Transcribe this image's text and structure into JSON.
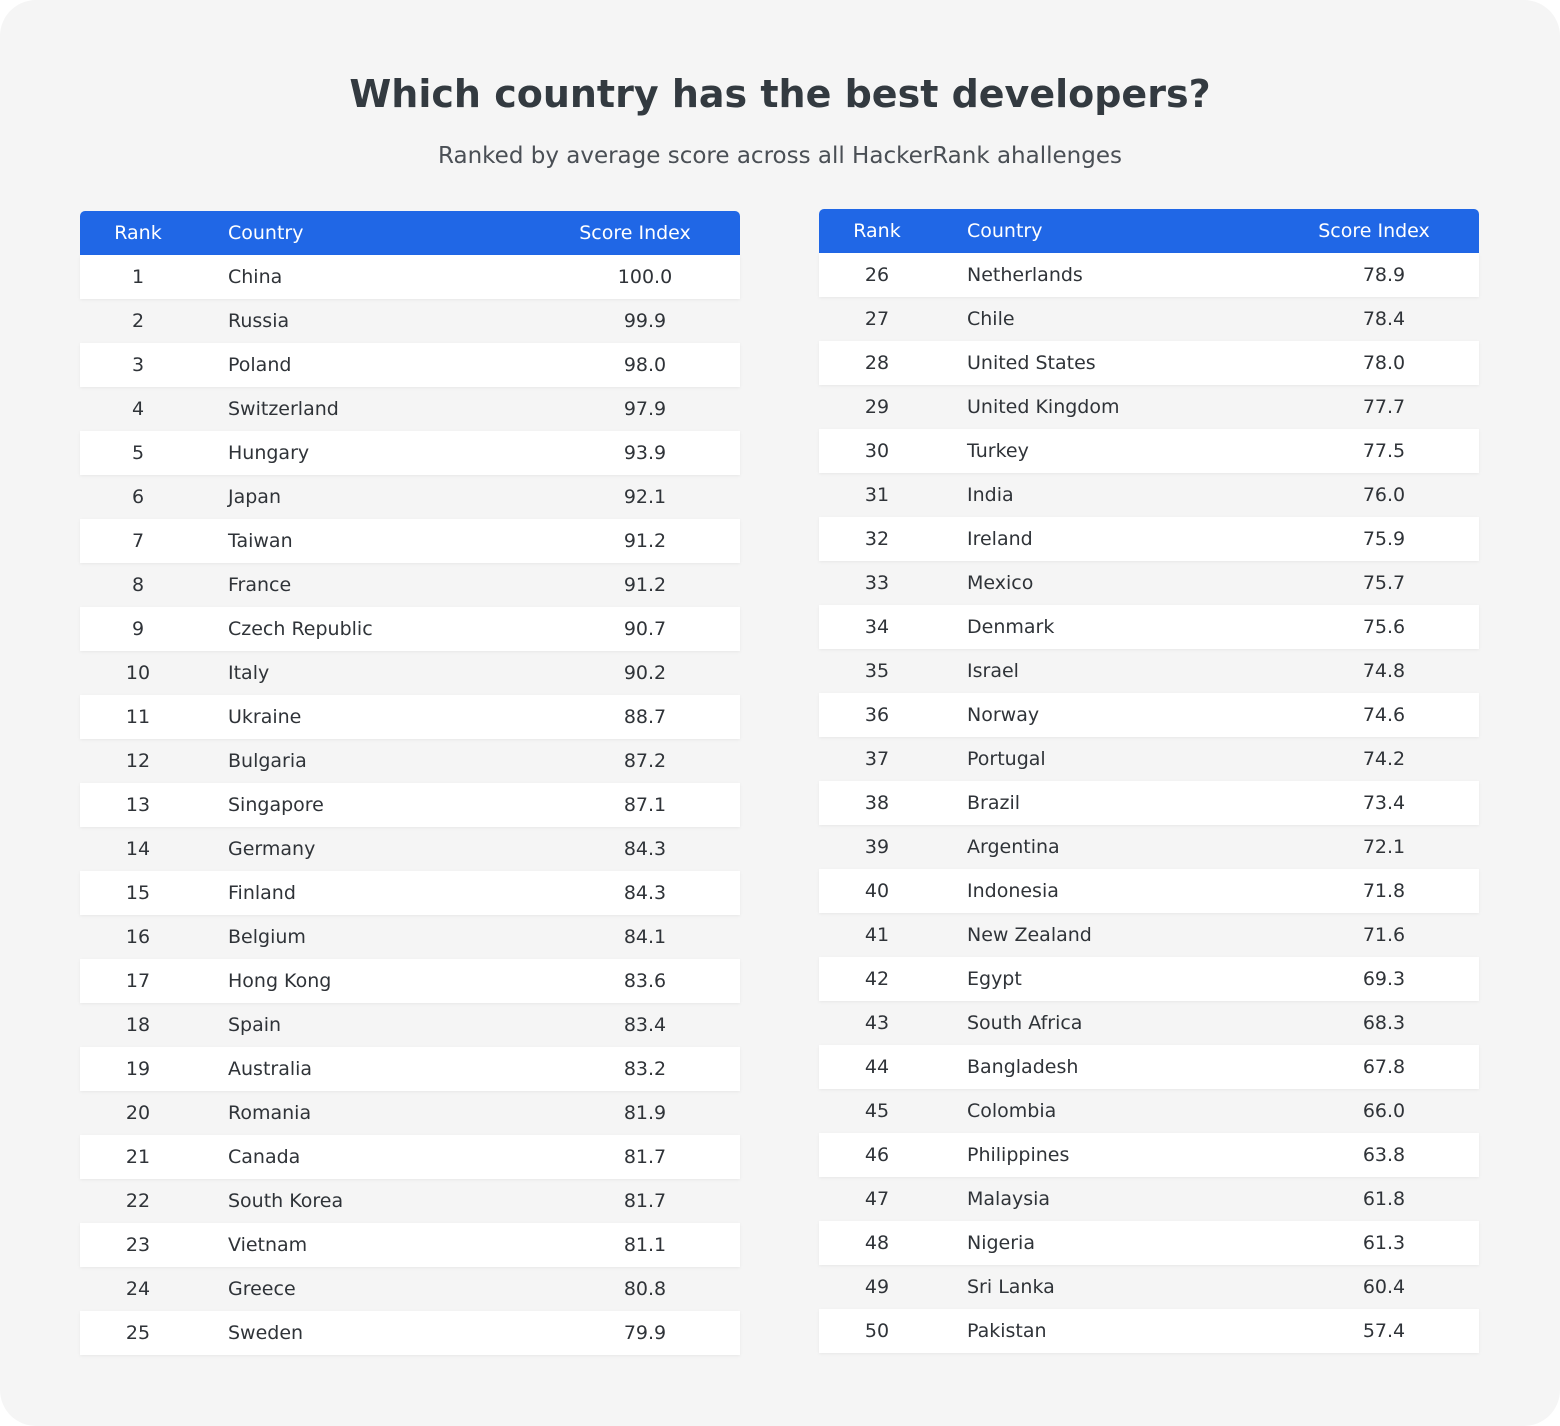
{
  "header": {
    "title": "Which country has the best developers?",
    "subtitle": "Ranked by average score across all HackerRank ahallenges"
  },
  "tables": [
    {
      "columns": [
        "Rank",
        "Country",
        "Score Index"
      ],
      "rows": [
        [
          "1",
          "China",
          "100.0"
        ],
        [
          "2",
          "Russia",
          "99.9"
        ],
        [
          "3",
          "Poland",
          "98.0"
        ],
        [
          "4",
          "Switzerland",
          "97.9"
        ],
        [
          "5",
          "Hungary",
          "93.9"
        ],
        [
          "6",
          "Japan",
          "92.1"
        ],
        [
          "7",
          "Taiwan",
          "91.2"
        ],
        [
          "8",
          "France",
          "91.2"
        ],
        [
          "9",
          "Czech Republic",
          "90.7"
        ],
        [
          "10",
          "Italy",
          "90.2"
        ],
        [
          "11",
          "Ukraine",
          "88.7"
        ],
        [
          "12",
          "Bulgaria",
          "87.2"
        ],
        [
          "13",
          "Singapore",
          "87.1"
        ],
        [
          "14",
          "Germany",
          "84.3"
        ],
        [
          "15",
          "Finland",
          "84.3"
        ],
        [
          "16",
          "Belgium",
          "84.1"
        ],
        [
          "17",
          "Hong Kong",
          "83.6"
        ],
        [
          "18",
          "Spain",
          "83.4"
        ],
        [
          "19",
          "Australia",
          "83.2"
        ],
        [
          "20",
          "Romania",
          "81.9"
        ],
        [
          "21",
          "Canada",
          "81.7"
        ],
        [
          "22",
          "South Korea",
          "81.7"
        ],
        [
          "23",
          "Vietnam",
          "81.1"
        ],
        [
          "24",
          "Greece",
          "80.8"
        ],
        [
          "25",
          "Sweden",
          "79.9"
        ]
      ]
    },
    {
      "columns": [
        "Rank",
        "Country",
        "Score Index"
      ],
      "rows": [
        [
          "26",
          "Netherlands",
          "78.9"
        ],
        [
          "27",
          "Chile",
          "78.4"
        ],
        [
          "28",
          "United States",
          "78.0"
        ],
        [
          "29",
          "United Kingdom",
          "77.7"
        ],
        [
          "30",
          "Turkey",
          "77.5"
        ],
        [
          "31",
          "India",
          "76.0"
        ],
        [
          "32",
          "Ireland",
          "75.9"
        ],
        [
          "33",
          "Mexico",
          "75.7"
        ],
        [
          "34",
          "Denmark",
          "75.6"
        ],
        [
          "35",
          "Israel",
          "74.8"
        ],
        [
          "36",
          "Norway",
          "74.6"
        ],
        [
          "37",
          "Portugal",
          "74.2"
        ],
        [
          "38",
          "Brazil",
          "73.4"
        ],
        [
          "39",
          "Argentina",
          "72.1"
        ],
        [
          "40",
          "Indonesia",
          "71.8"
        ],
        [
          "41",
          "New Zealand",
          "71.6"
        ],
        [
          "42",
          "Egypt",
          "69.3"
        ],
        [
          "43",
          "South Africa",
          "68.3"
        ],
        [
          "44",
          "Bangladesh",
          "67.8"
        ],
        [
          "45",
          "Colombia",
          "66.0"
        ],
        [
          "46",
          "Philippines",
          "63.8"
        ],
        [
          "47",
          "Malaysia",
          "61.8"
        ],
        [
          "48",
          "Nigeria",
          "61.3"
        ],
        [
          "49",
          "Sri Lanka",
          "60.4"
        ],
        [
          "50",
          "Pakistan",
          "57.4"
        ]
      ]
    }
  ]
}
